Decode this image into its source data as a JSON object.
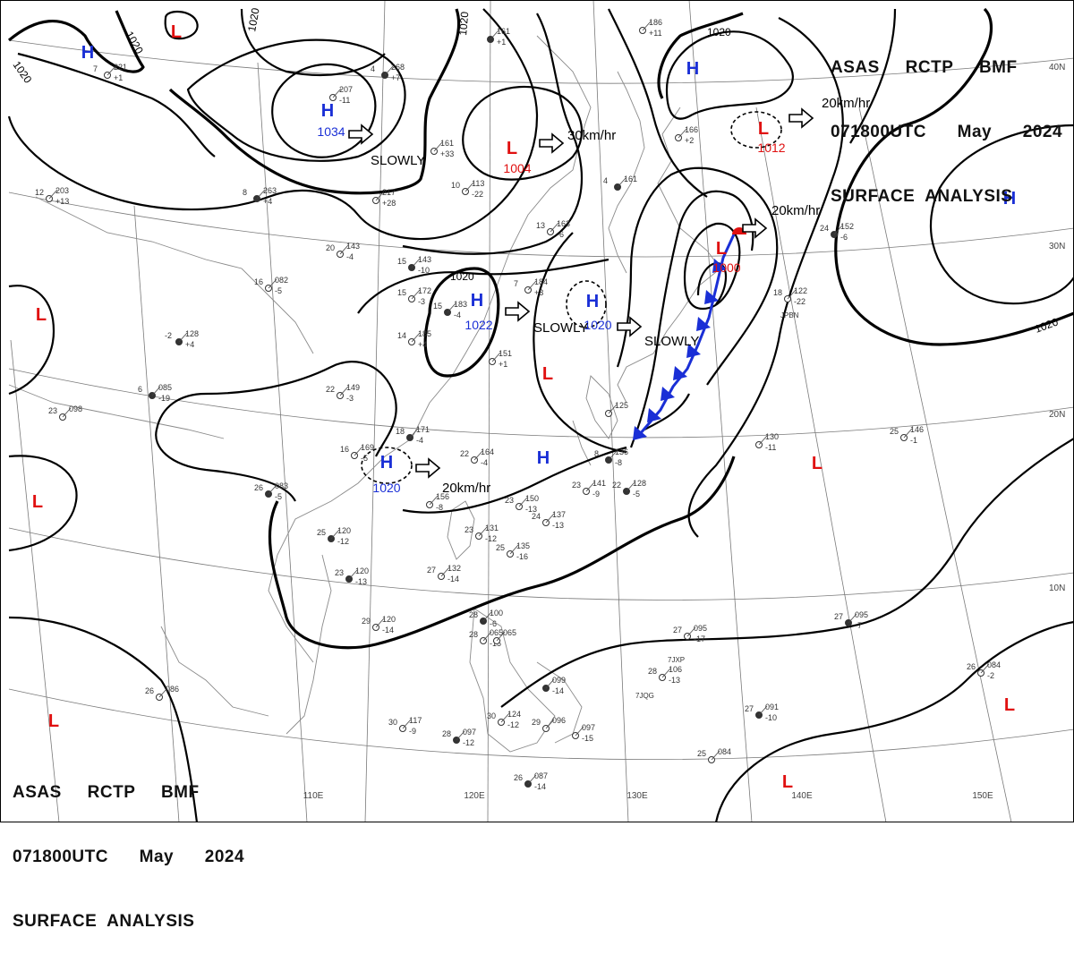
{
  "header": {
    "line1": "ASAS     RCTP     BMF",
    "line2": "071800UTC      May      2024",
    "line3": "SURFACE  ANALYSIS"
  },
  "colors": {
    "high": "#1a2fd6",
    "low": "#e01010",
    "isobar": "#000000",
    "grid": "#7a7a7a",
    "coast": "#8a8a8a",
    "front_cold": "#1a2fd6",
    "front_warm": "#e01010"
  },
  "map": {
    "longitude_labels": [
      "110E",
      "120E",
      "130E",
      "140E",
      "150E"
    ],
    "latitude_labels": [
      "40N",
      "30N",
      "20N",
      "10N"
    ]
  },
  "systems": {
    "highs": [
      {
        "letter": "H",
        "pressure": ""
      },
      {
        "letter": "H",
        "pressure": "1034"
      },
      {
        "letter": "H",
        "pressure": "1022"
      },
      {
        "letter": "H",
        "pressure": "1020"
      },
      {
        "letter": "H",
        "pressure": "1020"
      },
      {
        "letter": "H",
        "pressure": ""
      },
      {
        "letter": "H",
        "pressure": ""
      },
      {
        "letter": "H",
        "pressure": ""
      }
    ],
    "lows": [
      {
        "letter": "L",
        "pressure": ""
      },
      {
        "letter": "L",
        "pressure": "1004"
      },
      {
        "letter": "L",
        "pressure": "1012"
      },
      {
        "letter": "L",
        "pressure": "1000"
      },
      {
        "letter": "L",
        "pressure": ""
      },
      {
        "letter": "L",
        "pressure": ""
      },
      {
        "letter": "L",
        "pressure": ""
      },
      {
        "letter": "L",
        "pressure": ""
      },
      {
        "letter": "L",
        "pressure": ""
      },
      {
        "letter": "L",
        "pressure": ""
      },
      {
        "letter": "L",
        "pressure": ""
      }
    ]
  },
  "motions": [
    "SLOWLY",
    "30km/hr",
    "20km/hr",
    "20km/hr",
    "SLOWLY",
    "SLOWLY",
    "20km/hr"
  ],
  "isobar_labels": [
    "1020",
    "1020",
    "1020",
    "1020",
    "1020",
    "1020",
    "1020",
    "1020"
  ],
  "stations": [
    {
      "t": "4",
      "p": "268",
      "d": "+7"
    },
    {
      "t": "7",
      "p": "221",
      "d": "+1"
    },
    {
      "t": "",
      "p": "207",
      "d": "-11"
    },
    {
      "t": "",
      "p": "161",
      "d": "+1"
    },
    {
      "t": "",
      "p": "186",
      "d": "+11"
    },
    {
      "t": "",
      "p": "161",
      "d": "+33"
    },
    {
      "t": "8",
      "p": "263",
      "d": "+4"
    },
    {
      "t": "",
      "p": "217",
      "d": "+28"
    },
    {
      "t": "10",
      "p": "113",
      "d": "-22"
    },
    {
      "t": "4",
      "p": "161",
      "d": ""
    },
    {
      "t": "12",
      "p": "203",
      "d": "+13"
    },
    {
      "t": "20",
      "p": "143",
      "d": "-4"
    },
    {
      "t": "15",
      "p": "143",
      "d": "-10"
    },
    {
      "t": "13",
      "p": "163",
      "d": "-6"
    },
    {
      "t": "",
      "p": "166",
      "d": "+2"
    },
    {
      "t": "24",
      "p": "152",
      "d": "-6"
    },
    {
      "t": "16",
      "p": "082",
      "d": "-5"
    },
    {
      "t": "15",
      "p": "172",
      "d": "-3"
    },
    {
      "t": "15",
      "p": "183",
      "d": "-4"
    },
    {
      "t": "7",
      "p": "184",
      "d": "+3"
    },
    {
      "t": "18",
      "p": "122",
      "d": "-22"
    },
    {
      "t": "-2",
      "p": "128",
      "d": "+4"
    },
    {
      "t": "14",
      "p": "185",
      "d": "+4"
    },
    {
      "t": "",
      "p": "151",
      "d": "+1"
    },
    {
      "t": "6",
      "p": "085",
      "d": "-19"
    },
    {
      "t": "22",
      "p": "149",
      "d": "-3"
    },
    {
      "t": "23",
      "p": "098",
      "d": ""
    },
    {
      "t": "18",
      "p": "171",
      "d": "-4"
    },
    {
      "t": "16",
      "p": "169",
      "d": "-5"
    },
    {
      "t": "22",
      "p": "164",
      "d": "-4"
    },
    {
      "t": "8",
      "p": "136",
      "d": "-8"
    },
    {
      "t": "",
      "p": "130",
      "d": "-11"
    },
    {
      "t": "25",
      "p": "146",
      "d": "-1"
    },
    {
      "t": "26",
      "p": "083",
      "d": "-5"
    },
    {
      "t": "",
      "p": "156",
      "d": "-8"
    },
    {
      "t": "23",
      "p": "141",
      "d": "-9"
    },
    {
      "t": "22",
      "p": "128",
      "d": "-5"
    },
    {
      "t": "23",
      "p": "150",
      "d": "-13"
    },
    {
      "t": "24",
      "p": "137",
      "d": "-13"
    },
    {
      "t": "25",
      "p": "120",
      "d": "-12"
    },
    {
      "t": "23",
      "p": "131",
      "d": "-12"
    },
    {
      "t": "25",
      "p": "135",
      "d": "-16"
    },
    {
      "t": "23",
      "p": "120",
      "d": "-13"
    },
    {
      "t": "27",
      "p": "132",
      "d": "-14"
    },
    {
      "t": "29",
      "p": "120",
      "d": "-14"
    },
    {
      "t": "28",
      "p": "100",
      "d": "-6"
    },
    {
      "t": "28",
      "p": "065",
      "d": "-15"
    },
    {
      "t": "27",
      "p": "095",
      "d": "-17"
    },
    {
      "t": "27",
      "p": "095",
      "d": "-7"
    },
    {
      "t": "28",
      "p": "106",
      "d": "-13"
    },
    {
      "t": "26",
      "p": "086",
      "d": ""
    },
    {
      "t": "",
      "p": "099",
      "d": "-14"
    },
    {
      "t": "30",
      "p": "117",
      "d": "-9"
    },
    {
      "t": "30",
      "p": "124",
      "d": "-12"
    },
    {
      "t": "28",
      "p": "097",
      "d": "-12"
    },
    {
      "t": "29",
      "p": "096",
      "d": ""
    },
    {
      "t": "",
      "p": "097",
      "d": "-15"
    },
    {
      "t": "27",
      "p": "091",
      "d": "-10"
    },
    {
      "t": "25",
      "p": "084",
      "d": ""
    },
    {
      "t": "26",
      "p": "084",
      "d": "-2"
    },
    {
      "t": "26",
      "p": "087",
      "d": "-14"
    },
    {
      "t": "",
      "p": "065",
      "d": ""
    },
    {
      "t": "",
      "p": "125",
      "d": ""
    }
  ],
  "station_codes": [
    "JPBN",
    "7JXP",
    "7JQG"
  ]
}
